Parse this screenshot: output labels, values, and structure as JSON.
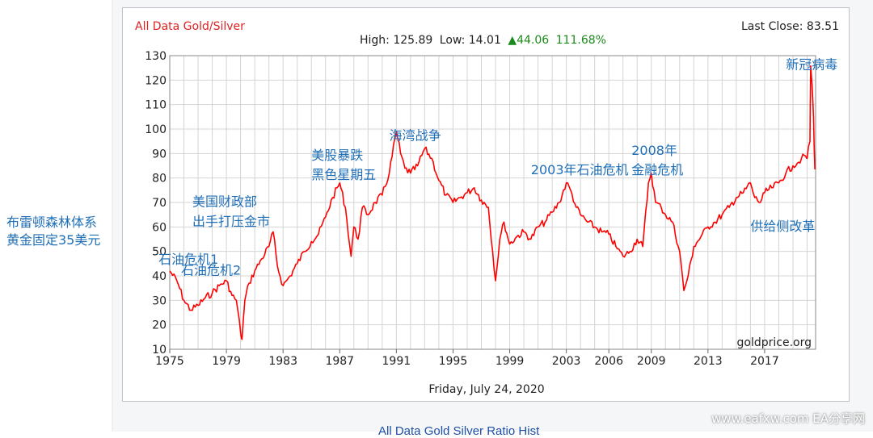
{
  "chart_data": {
    "type": "line",
    "title": "All Data Gold/Silver",
    "last_close_label": "Last Close: 83.51",
    "stats": {
      "high_text": "High: 125.89",
      "low_text": "Low: 14.01",
      "change_text": "44.06",
      "change_pct_text": "111.68%"
    },
    "date_label": "Friday, July 24, 2020",
    "source": "goldprice.org",
    "xlim": [
      1975,
      2020.6
    ],
    "ylim": [
      10,
      130
    ],
    "y_ticks": [
      10,
      20,
      30,
      40,
      50,
      60,
      70,
      80,
      90,
      100,
      110,
      120,
      130
    ],
    "x_ticks": [
      1975,
      1979,
      1983,
      1987,
      1991,
      1995,
      1999,
      2003,
      2006,
      2009,
      2013,
      2017
    ],
    "grid": true,
    "series": [
      {
        "color": "#ff0000",
        "x": [
          1975.0,
          1975.5,
          1976.0,
          1976.5,
          1977.0,
          1977.5,
          1978.0,
          1978.5,
          1979.0,
          1979.4,
          1979.7,
          1980.0,
          1980.1,
          1980.3,
          1980.6,
          1981.0,
          1981.5,
          1982.0,
          1982.3,
          1982.6,
          1983.0,
          1983.5,
          1984.0,
          1984.5,
          1985.0,
          1985.5,
          1986.0,
          1986.5,
          1987.0,
          1987.4,
          1987.8,
          1988.0,
          1988.3,
          1988.6,
          1989.0,
          1989.5,
          1990.0,
          1990.5,
          1991.0,
          1991.3,
          1991.6,
          1992.0,
          1992.5,
          1993.0,
          1993.5,
          1994.0,
          1994.5,
          1995.0,
          1995.5,
          1996.0,
          1996.5,
          1997.0,
          1997.5,
          1998.0,
          1998.3,
          1998.6,
          1999.0,
          1999.5,
          2000.0,
          2000.5,
          2001.0,
          2001.5,
          2002.0,
          2002.5,
          2003.0,
          2003.3,
          2003.7,
          2004.0,
          2004.5,
          2005.0,
          2005.5,
          2006.0,
          2006.5,
          2007.0,
          2007.5,
          2008.0,
          2008.4,
          2008.8,
          2009.0,
          2009.3,
          2009.7,
          2010.0,
          2010.5,
          2011.0,
          2011.3,
          2011.6,
          2012.0,
          2012.5,
          2013.0,
          2013.5,
          2014.0,
          2014.5,
          2015.0,
          2015.5,
          2016.0,
          2016.3,
          2016.7,
          2017.0,
          2017.5,
          2018.0,
          2018.5,
          2019.0,
          2019.3,
          2019.6,
          2019.9,
          2020.0,
          2020.2,
          2020.25,
          2020.35,
          2020.45,
          2020.55
        ],
        "values": [
          42,
          38,
          30,
          26,
          28,
          31,
          33,
          36,
          38,
          32,
          30,
          17,
          14.01,
          30,
          37,
          42,
          47,
          52,
          58,
          44,
          36,
          40,
          45,
          50,
          54,
          57,
          64,
          72,
          78,
          68,
          48,
          60,
          55,
          68,
          65,
          70,
          73,
          82,
          99,
          90,
          84,
          82,
          85,
          92,
          88,
          79,
          73,
          70,
          72,
          74,
          76,
          71,
          68,
          38,
          55,
          62,
          53,
          56,
          58,
          55,
          60,
          62,
          66,
          70,
          78,
          75,
          68,
          65,
          62,
          60,
          58,
          57,
          52,
          48,
          50,
          55,
          52,
          78,
          82,
          70,
          68,
          65,
          62,
          50,
          34,
          40,
          52,
          56,
          60,
          62,
          65,
          68,
          72,
          74,
          78,
          72,
          70,
          74,
          76,
          78,
          82,
          85,
          86,
          88,
          89,
          88,
          95,
          125.89,
          118,
          105,
          83.51
        ]
      }
    ],
    "annotations": [
      {
        "text": "石油危机1",
        "x": 1974.2,
        "y": 45
      },
      {
        "text": "石油危机2",
        "x": 1975.8,
        "y": 40.5
      },
      {
        "text": "美国财政部",
        "x": 1976.6,
        "y": 68.5
      },
      {
        "text": "出手打压金市",
        "x": 1976.6,
        "y": 60.5
      },
      {
        "text": "美股暴跌",
        "x": 1985.0,
        "y": 87.5
      },
      {
        "text": "黑色星期五",
        "x": 1985.0,
        "y": 79.5
      },
      {
        "text": "海湾战争",
        "x": 1990.5,
        "y": 95.5
      },
      {
        "text": "2003年石油危机",
        "x": 2000.5,
        "y": 81.5
      },
      {
        "text": "2008年",
        "x": 2007.6,
        "y": 89.5
      },
      {
        "text": "金融危机",
        "x": 2007.6,
        "y": 81.5
      },
      {
        "text": "供给侧改革",
        "x": 2016.0,
        "y": 58.5
      },
      {
        "text": "新冠病毒",
        "x": 2018.5,
        "y": 124.5
      }
    ]
  },
  "outer_annotation": {
    "line1": "布雷顿森林体系",
    "line2": "黄金固定35美元"
  },
  "bottom_link": "All Data Gold Silver Ratio Hist",
  "watermark": "www.eafxw.com   EA分享网"
}
